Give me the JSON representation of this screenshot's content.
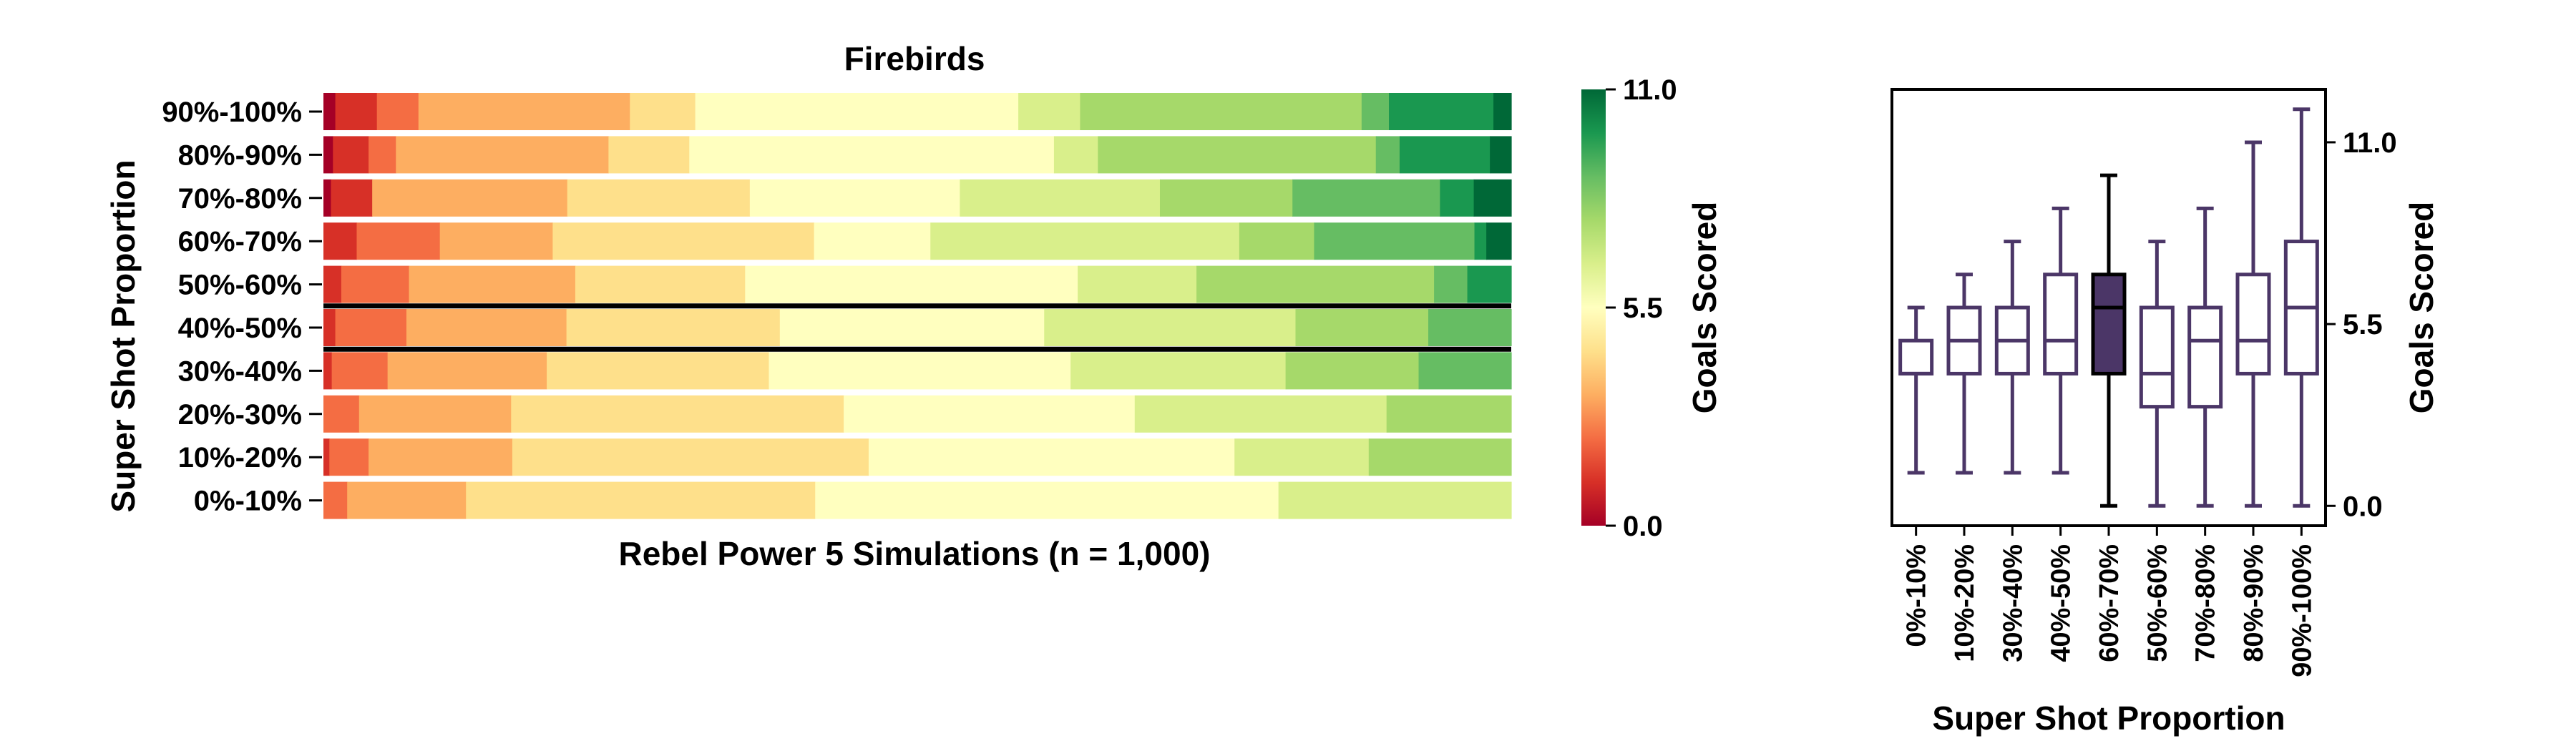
{
  "chart_data": [
    {
      "type": "stacked-bar",
      "title": "Firebirds",
      "xlabel": "Rebel Power 5 Simulations (n = 1,000)",
      "ylabel": "Super Shot Proportion",
      "row_order_top_to_bottom": [
        "90%-100%",
        "80%-90%",
        "70%-80%",
        "60%-70%",
        "50%-60%",
        "40%-50%",
        "30%-40%",
        "20%-30%",
        "10%-20%",
        "0%-10%"
      ],
      "highlighted_rows": [
        "40%-50%"
      ],
      "colorbar": {
        "label": "Goals Scored",
        "min": 0.0,
        "max": 11.0,
        "ticks": [
          "0.0",
          "5.5",
          "11.0"
        ],
        "colormap": "RdYlGn",
        "stops": [
          "#a50026",
          "#d73027",
          "#f46d43",
          "#fdae61",
          "#fee08b",
          "#ffffbf",
          "#d9ef8b",
          "#a6d96a",
          "#66bd63",
          "#1a9850",
          "#006837"
        ]
      },
      "series": [
        {
          "label": "90%-100%",
          "counts": [
            10,
            35,
            35,
            178,
            55,
            272,
            52,
            237,
            23,
            88,
            15
          ]
        },
        {
          "label": "80%-90%",
          "counts": [
            8,
            30,
            23,
            179,
            68,
            307,
            37,
            234,
            20,
            76,
            18
          ]
        },
        {
          "label": "70%-80%",
          "counts": [
            6,
            33,
            0,
            156,
            146,
            168,
            160,
            106,
            118,
            27,
            30
          ]
        },
        {
          "label": "60%-70%",
          "counts": [
            0,
            28,
            70,
            95,
            220,
            98,
            260,
            63,
            135,
            10,
            21
          ]
        },
        {
          "label": "50%-60%",
          "counts": [
            0,
            15,
            57,
            140,
            143,
            280,
            100,
            200,
            28,
            37,
            0
          ]
        },
        {
          "label": "40%-50%",
          "counts": [
            0,
            10,
            60,
            135,
            180,
            223,
            212,
            112,
            70,
            0,
            0
          ]
        },
        {
          "label": "30%-40%",
          "counts": [
            0,
            7,
            47,
            134,
            187,
            254,
            181,
            112,
            78,
            0,
            0
          ]
        },
        {
          "label": "20%-30%",
          "counts": [
            0,
            0,
            30,
            128,
            280,
            245,
            212,
            105,
            0,
            0,
            0
          ]
        },
        {
          "label": "10%-20%",
          "counts": [
            0,
            5,
            33,
            121,
            300,
            308,
            113,
            120,
            0,
            0,
            0
          ]
        },
        {
          "label": "0%-10%",
          "counts": [
            0,
            0,
            20,
            100,
            294,
            390,
            196,
            0,
            0,
            0,
            0
          ]
        }
      ]
    },
    {
      "type": "box",
      "xlabel": "Super Shot Proportion",
      "ylabel": "Goals Scored",
      "ylim": [
        -0.6,
        12.6
      ],
      "yticks": [
        "0.0",
        "5.5",
        "11.0"
      ],
      "colors": {
        "box": "#4b3667",
        "highlight": "#4b3667"
      },
      "highlighted_category": "60%-70%",
      "boxes": [
        {
          "label": "0%-10%",
          "whisker_low": 1,
          "q1": 4,
          "median": 4,
          "q3": 5,
          "whisker_high": 6
        },
        {
          "label": "10%-20%",
          "whisker_low": 1,
          "q1": 4,
          "median": 5,
          "q3": 6,
          "whisker_high": 7
        },
        {
          "label": "30%-40%",
          "whisker_low": 1,
          "q1": 4,
          "median": 5,
          "q3": 6,
          "whisker_high": 8
        },
        {
          "label": "40%-50%",
          "whisker_low": 1,
          "q1": 4,
          "median": 5,
          "q3": 7,
          "whisker_high": 9
        },
        {
          "label": "60%-70%",
          "whisker_low": 0,
          "q1": 4,
          "median": 6,
          "q3": 7,
          "whisker_high": 10
        },
        {
          "label": "50%-60%",
          "whisker_low": 0,
          "q1": 3,
          "median": 4,
          "q3": 6,
          "whisker_high": 8
        },
        {
          "label": "70%-80%",
          "whisker_low": 0,
          "q1": 3,
          "median": 5,
          "q3": 6,
          "whisker_high": 9
        },
        {
          "label": "80%-90%",
          "whisker_low": 0,
          "q1": 4,
          "median": 5,
          "q3": 7,
          "whisker_high": 11
        },
        {
          "label": "90%-100%",
          "whisker_low": 0,
          "q1": 4,
          "median": 6,
          "q3": 8,
          "whisker_high": 12
        }
      ]
    }
  ]
}
